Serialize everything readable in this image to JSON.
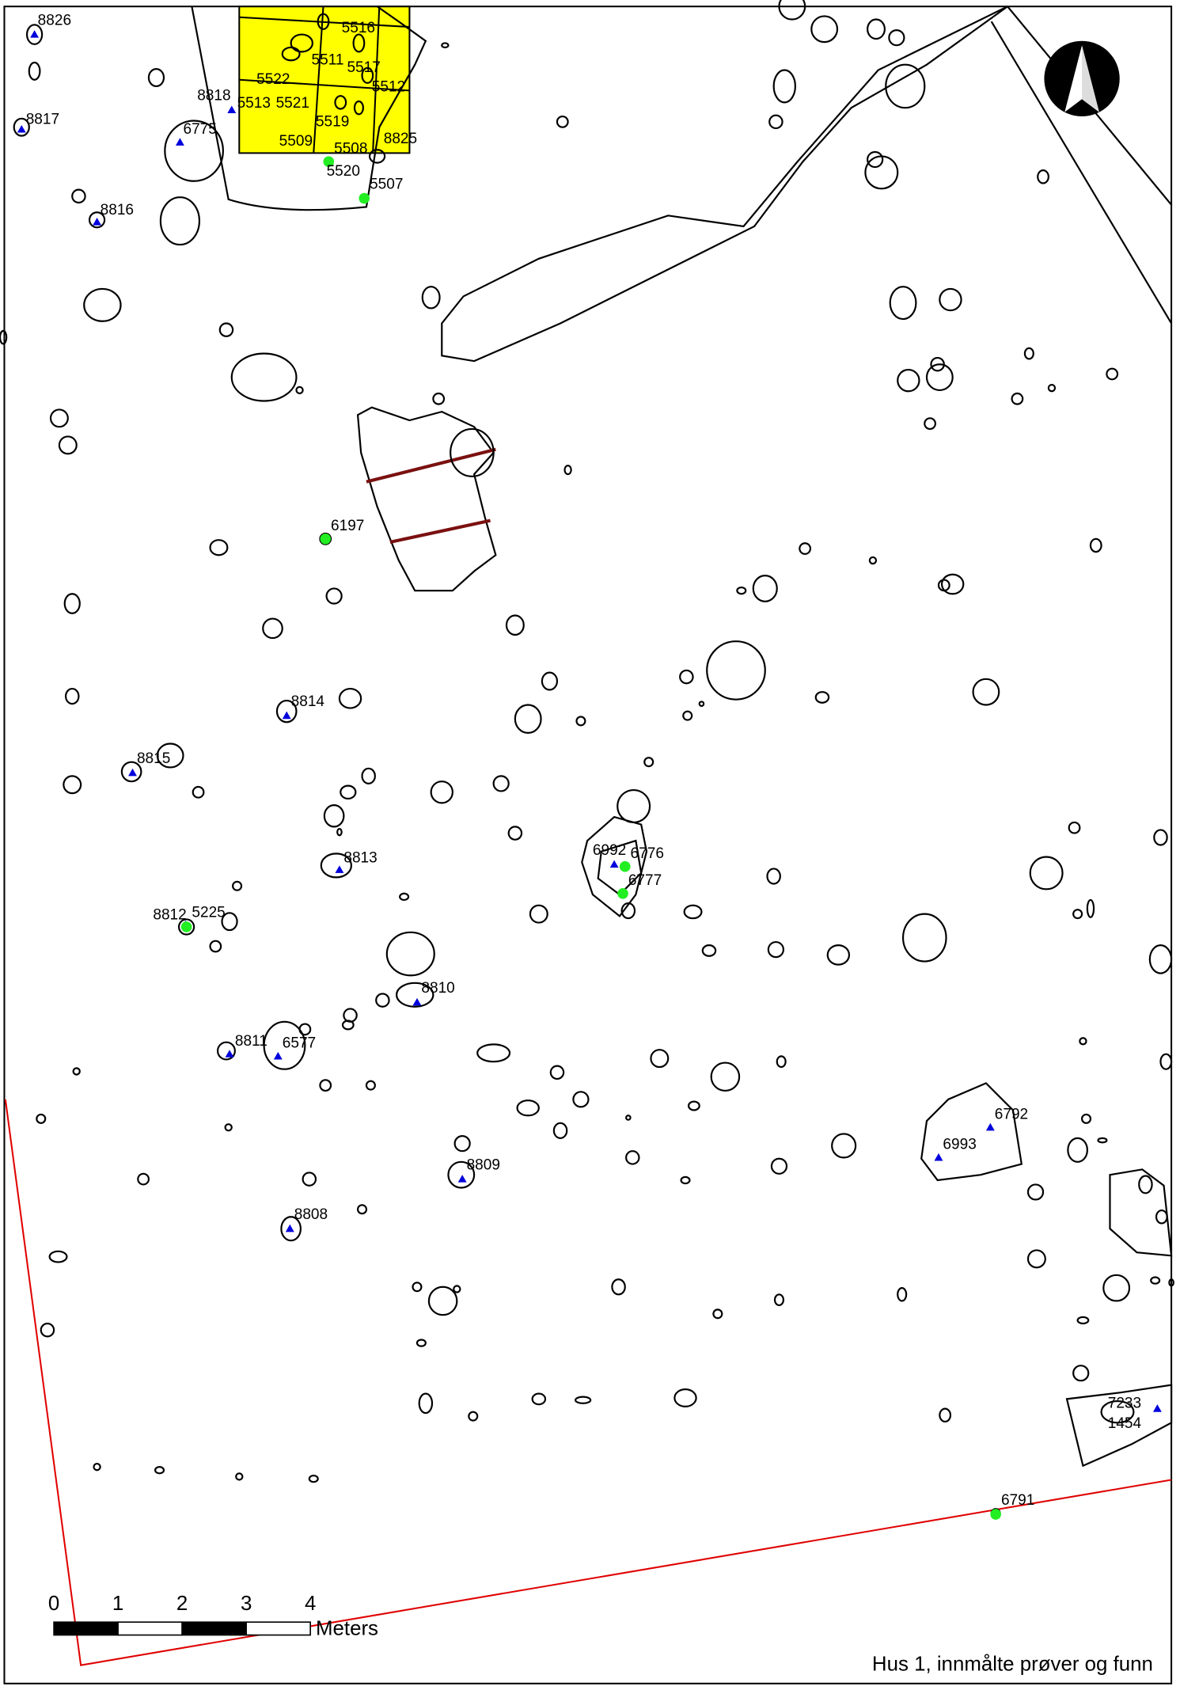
{
  "finds": [
    "8826",
    "8817",
    "8818",
    "6775",
    "8816",
    "8814",
    "8815",
    "8813",
    "6992",
    "8810",
    "8811",
    "6577",
    "8809",
    "8808",
    "6792",
    "6993",
    "7233",
    "8812"
  ],
  "samples": [
    "5520",
    "5507",
    "6197",
    "6776",
    "6777",
    "5225",
    "6791"
  ],
  "plan_labels": [
    "5516",
    "5511",
    "5517",
    "5522",
    "5512",
    "5519",
    "5509",
    "5508",
    "8825",
    "5513",
    "5521",
    "1454"
  ],
  "scale_bar": {
    "ticks": [
      0,
      1,
      2,
      3,
      4
    ],
    "unit": "Meters"
  },
  "caption": "Hus 1, innmålte prøver og funn"
}
